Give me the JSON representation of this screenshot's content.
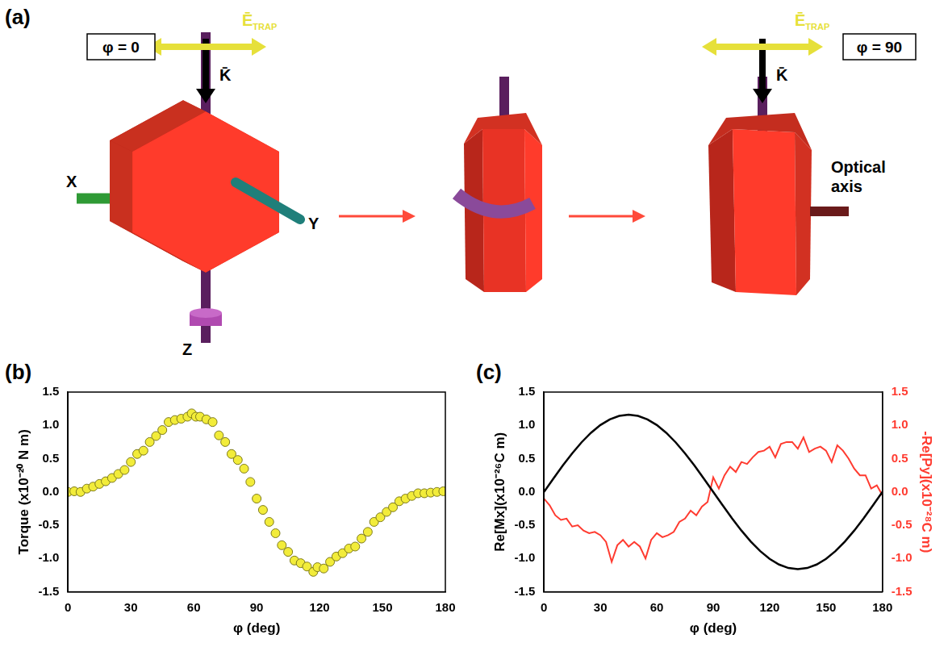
{
  "diagram": {
    "panel": "(a)",
    "left_box": "φ = 0",
    "right_box": "φ = 90",
    "field": {
      "text": "Ē",
      "subscript": "TRAP"
    },
    "wavevector": "K̄",
    "axes": [
      "X",
      "Y",
      "Z"
    ],
    "optical_axis": "Optical axis"
  },
  "chart_data": [
    {
      "panel": "(b)",
      "type": "scatter",
      "x_label": "φ (deg)",
      "y_label": "Torque (x10⁻²⁰ N m)",
      "x": [
        0,
        3,
        6,
        9,
        12,
        15,
        18,
        21,
        24,
        27,
        30,
        33,
        36,
        39,
        42,
        45,
        48,
        51,
        54,
        57,
        59,
        61,
        63,
        66,
        69,
        72,
        75,
        78,
        81,
        84,
        87,
        90,
        93,
        96,
        99,
        102,
        105,
        108,
        111,
        114,
        117,
        119,
        122,
        125,
        128,
        131,
        134,
        137,
        140,
        143,
        146,
        149,
        152,
        155,
        158,
        161,
        164,
        167,
        170,
        173,
        176,
        179
      ],
      "values": [
        0.0,
        0.01,
        0.0,
        0.05,
        0.08,
        0.12,
        0.16,
        0.21,
        0.27,
        0.33,
        0.45,
        0.57,
        0.62,
        0.75,
        0.84,
        0.93,
        1.05,
        1.08,
        1.1,
        1.13,
        1.18,
        1.13,
        1.13,
        1.09,
        1.05,
        0.85,
        0.75,
        0.57,
        0.48,
        0.35,
        0.15,
        -0.1,
        -0.27,
        -0.45,
        -0.62,
        -0.8,
        -0.9,
        -1.03,
        -1.07,
        -1.12,
        -1.2,
        -1.13,
        -1.15,
        -1.05,
        -0.97,
        -0.92,
        -0.85,
        -0.82,
        -0.7,
        -0.6,
        -0.45,
        -0.38,
        -0.3,
        -0.23,
        -0.14,
        -0.1,
        -0.06,
        -0.02,
        -0.02,
        -0.01,
        0.0,
        0.01
      ],
      "color": "#f2ec3a",
      "marker": "circle",
      "xlim": [
        0,
        180
      ],
      "xticks": [
        0,
        30,
        60,
        90,
        120,
        150,
        180
      ],
      "ylim": [
        -1.5,
        1.5
      ],
      "yticks": [
        -1.5,
        {
          "value": -1,
          "label": "-1.0"
        },
        -0.5,
        {
          "value": 0,
          "label": "0.0"
        },
        0.5,
        {
          "value": 1,
          "label": "1.0"
        },
        1.5
      ],
      "grid": false
    },
    {
      "panel": "(c)",
      "type": "line",
      "x_label": "φ (deg)",
      "y_label": "Re[Mx](x10⁻²⁶C m)",
      "y2_label": "-Re[Py](x10⁻²⁸C m)",
      "series": [
        {
          "color": "#000000",
          "axis": "y",
          "x": [
            0,
            5,
            10,
            15,
            20,
            25,
            30,
            35,
            40,
            45,
            50,
            55,
            60,
            65,
            70,
            75,
            80,
            85,
            90,
            95,
            100,
            105,
            110,
            115,
            120,
            125,
            130,
            135,
            140,
            145,
            150,
            155,
            160,
            165,
            170,
            175,
            180
          ],
          "values": [
            0,
            0.2,
            0.397,
            0.58,
            0.746,
            0.889,
            1.005,
            1.09,
            1.142,
            1.16,
            1.142,
            1.09,
            1.005,
            0.889,
            0.746,
            0.58,
            0.397,
            0.2,
            0,
            -0.2,
            -0.397,
            -0.58,
            -0.746,
            -0.889,
            -1.005,
            -1.09,
            -1.142,
            -1.16,
            -1.142,
            -1.09,
            -1.005,
            -0.889,
            -0.746,
            -0.58,
            -0.397,
            -0.2,
            0
          ]
        },
        {
          "color": "#ff3b30",
          "axis": "y2",
          "x": [
            0,
            3,
            6,
            9,
            12,
            15,
            18,
            21,
            24,
            27,
            30,
            33,
            36,
            39,
            42,
            45,
            48,
            51,
            54,
            57,
            60,
            63,
            66,
            69,
            72,
            75,
            78,
            81,
            84,
            87,
            90,
            93,
            96,
            99,
            102,
            105,
            108,
            111,
            114,
            117,
            120,
            123,
            126,
            129,
            132,
            135,
            138,
            141,
            144,
            147,
            150,
            153,
            156,
            159,
            162,
            165,
            168,
            171,
            174,
            177,
            180
          ],
          "values": [
            -0.1,
            -0.2,
            -0.35,
            -0.42,
            -0.4,
            -0.52,
            -0.5,
            -0.58,
            -0.62,
            -0.6,
            -0.65,
            -0.75,
            -1.05,
            -0.8,
            -0.72,
            -0.82,
            -0.75,
            -0.82,
            -1.0,
            -0.72,
            -0.62,
            -0.68,
            -0.65,
            -0.6,
            -0.45,
            -0.4,
            -0.28,
            -0.35,
            -0.22,
            -0.15,
            0.22,
            0.05,
            0.25,
            0.38,
            0.3,
            0.45,
            0.42,
            0.52,
            0.6,
            0.62,
            0.68,
            0.52,
            0.72,
            0.75,
            0.75,
            0.65,
            0.82,
            0.6,
            0.65,
            0.68,
            0.62,
            0.45,
            0.7,
            0.62,
            0.5,
            0.35,
            0.25,
            0.25,
            0.05,
            0.1,
            -0.05
          ]
        }
      ],
      "xlim": [
        0,
        180
      ],
      "xticks": [
        0,
        30,
        60,
        90,
        120,
        150,
        180
      ],
      "ylim": [
        -1.5,
        1.5
      ],
      "yticks": [
        -1.5,
        {
          "value": -1,
          "label": "-1.0"
        },
        -0.5,
        {
          "value": 0,
          "label": "0.0"
        },
        0.5,
        {
          "value": 1,
          "label": "1.0"
        },
        1.5
      ],
      "y2lim": [
        -1.5,
        1.5
      ],
      "y2ticks": [
        -1.5,
        {
          "value": -1,
          "label": "-1.0"
        },
        -0.5,
        {
          "value": 0,
          "label": "0.0"
        },
        0.5,
        {
          "value": 1,
          "label": "1.0"
        },
        1.5
      ],
      "grid": false
    }
  ]
}
